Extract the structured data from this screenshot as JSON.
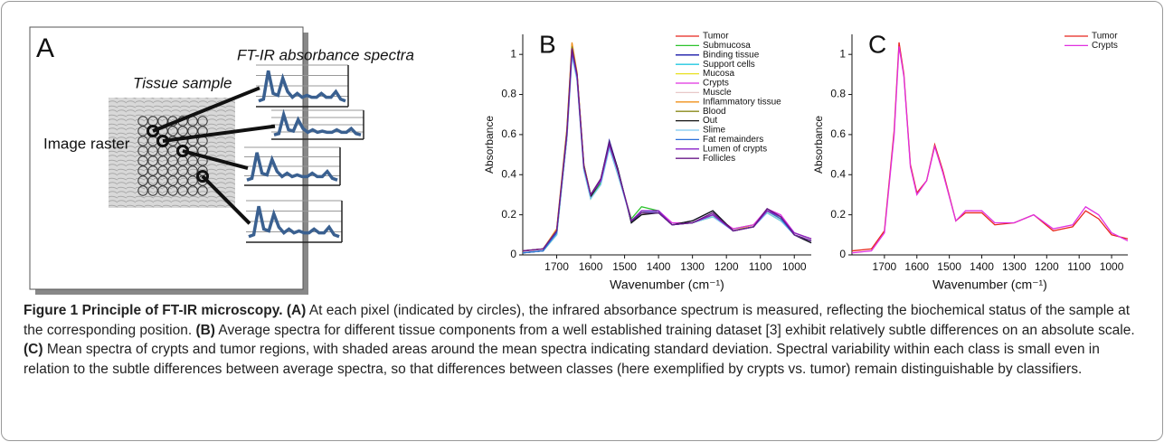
{
  "panel_a": {
    "label": "A",
    "spectra_title": "FT-IR absorbance spectra",
    "tissue_label": "Tissue sample",
    "raster_label": "Image raster"
  },
  "chart_data": [
    {
      "type": "line",
      "panel_label": "B",
      "xlabel": "Wavenumber (cm⁻¹)",
      "ylabel": "Absorbance",
      "xlim": [
        1800,
        950
      ],
      "xticks": [
        1700,
        1600,
        1500,
        1400,
        1300,
        1200,
        1100,
        1000
      ],
      "ylim": [
        0,
        1.1
      ],
      "yticks": [
        0,
        0.2,
        0.4,
        0.6,
        0.8,
        1
      ],
      "legend": "upper right",
      "x": [
        1800,
        1740,
        1700,
        1670,
        1655,
        1640,
        1620,
        1600,
        1570,
        1545,
        1520,
        1480,
        1450,
        1400,
        1360,
        1300,
        1240,
        1180,
        1120,
        1080,
        1040,
        1000,
        950
      ],
      "series": [
        {
          "name": "Tumor",
          "color": "#e8251c",
          "values": [
            0.02,
            0.03,
            0.12,
            0.62,
            1.05,
            0.9,
            0.45,
            0.3,
            0.37,
            0.55,
            0.42,
            0.17,
            0.21,
            0.21,
            0.15,
            0.16,
            0.2,
            0.12,
            0.14,
            0.22,
            0.18,
            0.1,
            0.07
          ]
        },
        {
          "name": "Submucosa",
          "color": "#2dc32d",
          "values": [
            0.01,
            0.02,
            0.1,
            0.58,
            1.0,
            0.88,
            0.43,
            0.28,
            0.36,
            0.54,
            0.4,
            0.18,
            0.24,
            0.22,
            0.15,
            0.16,
            0.19,
            0.13,
            0.15,
            0.21,
            0.17,
            0.11,
            0.08
          ]
        },
        {
          "name": "Binding tissue",
          "color": "#1a1aa8",
          "values": [
            0.01,
            0.02,
            0.11,
            0.6,
            1.02,
            0.89,
            0.44,
            0.3,
            0.38,
            0.57,
            0.43,
            0.16,
            0.21,
            0.22,
            0.15,
            0.17,
            0.22,
            0.12,
            0.14,
            0.23,
            0.19,
            0.1,
            0.06
          ]
        },
        {
          "name": "Support cells",
          "color": "#22c8e0",
          "values": [
            0.02,
            0.03,
            0.11,
            0.59,
            1.01,
            0.88,
            0.43,
            0.29,
            0.37,
            0.55,
            0.41,
            0.17,
            0.22,
            0.21,
            0.15,
            0.16,
            0.2,
            0.12,
            0.14,
            0.22,
            0.18,
            0.1,
            0.07
          ]
        },
        {
          "name": "Mucosa",
          "color": "#e8e020",
          "values": [
            0.02,
            0.03,
            0.12,
            0.61,
            1.03,
            0.9,
            0.44,
            0.3,
            0.37,
            0.55,
            0.42,
            0.17,
            0.22,
            0.21,
            0.15,
            0.16,
            0.2,
            0.12,
            0.15,
            0.22,
            0.18,
            0.11,
            0.08
          ]
        },
        {
          "name": "Crypts",
          "color": "#e030e0",
          "values": [
            0.02,
            0.03,
            0.12,
            0.6,
            1.03,
            0.9,
            0.44,
            0.3,
            0.37,
            0.54,
            0.41,
            0.17,
            0.22,
            0.22,
            0.16,
            0.16,
            0.2,
            0.13,
            0.15,
            0.23,
            0.2,
            0.11,
            0.08
          ]
        },
        {
          "name": "Muscle",
          "color": "#e8c8c8",
          "values": [
            0.02,
            0.03,
            0.11,
            0.59,
            1.01,
            0.88,
            0.43,
            0.29,
            0.37,
            0.55,
            0.41,
            0.17,
            0.22,
            0.21,
            0.15,
            0.16,
            0.2,
            0.12,
            0.14,
            0.22,
            0.18,
            0.1,
            0.07
          ]
        },
        {
          "name": "Inflammatory tissue",
          "color": "#f0901a",
          "values": [
            0.02,
            0.03,
            0.13,
            0.63,
            1.06,
            0.91,
            0.45,
            0.3,
            0.37,
            0.55,
            0.42,
            0.17,
            0.21,
            0.21,
            0.15,
            0.16,
            0.2,
            0.12,
            0.14,
            0.22,
            0.18,
            0.1,
            0.07
          ]
        },
        {
          "name": "Blood",
          "color": "#8a8a1a",
          "values": [
            0.02,
            0.03,
            0.12,
            0.62,
            1.04,
            0.9,
            0.45,
            0.3,
            0.38,
            0.56,
            0.42,
            0.17,
            0.21,
            0.21,
            0.15,
            0.16,
            0.2,
            0.12,
            0.14,
            0.22,
            0.18,
            0.1,
            0.07
          ]
        },
        {
          "name": "Out",
          "color": "#111111",
          "values": [
            0.01,
            0.02,
            0.11,
            0.6,
            1.02,
            0.88,
            0.43,
            0.29,
            0.37,
            0.56,
            0.43,
            0.16,
            0.2,
            0.21,
            0.15,
            0.17,
            0.22,
            0.12,
            0.14,
            0.23,
            0.19,
            0.1,
            0.06
          ]
        },
        {
          "name": "Slime",
          "color": "#7cc8f0",
          "values": [
            0.01,
            0.02,
            0.1,
            0.58,
            0.99,
            0.87,
            0.42,
            0.28,
            0.35,
            0.53,
            0.4,
            0.17,
            0.22,
            0.21,
            0.15,
            0.16,
            0.19,
            0.12,
            0.14,
            0.21,
            0.17,
            0.1,
            0.07
          ]
        },
        {
          "name": "Fat remainders",
          "color": "#2a70d8",
          "values": [
            0.01,
            0.02,
            0.11,
            0.6,
            1.01,
            0.89,
            0.44,
            0.3,
            0.37,
            0.55,
            0.42,
            0.17,
            0.21,
            0.21,
            0.15,
            0.16,
            0.2,
            0.12,
            0.14,
            0.22,
            0.18,
            0.1,
            0.07
          ]
        },
        {
          "name": "Lumen of crypts",
          "color": "#8a20c8",
          "values": [
            0.02,
            0.03,
            0.12,
            0.6,
            1.02,
            0.89,
            0.44,
            0.3,
            0.37,
            0.55,
            0.42,
            0.17,
            0.22,
            0.22,
            0.15,
            0.16,
            0.2,
            0.12,
            0.14,
            0.22,
            0.19,
            0.11,
            0.08
          ]
        },
        {
          "name": "Follicles",
          "color": "#6a1a8a",
          "values": [
            0.02,
            0.03,
            0.12,
            0.61,
            1.03,
            0.9,
            0.44,
            0.3,
            0.38,
            0.56,
            0.42,
            0.17,
            0.21,
            0.21,
            0.15,
            0.16,
            0.21,
            0.12,
            0.14,
            0.23,
            0.19,
            0.1,
            0.07
          ]
        }
      ]
    },
    {
      "type": "line",
      "panel_label": "C",
      "xlabel": "Wavenumber (cm⁻¹)",
      "ylabel": "Absorbance",
      "xlim": [
        1800,
        950
      ],
      "xticks": [
        1700,
        1600,
        1500,
        1400,
        1300,
        1200,
        1100,
        1000
      ],
      "ylim": [
        0,
        1.1
      ],
      "yticks": [
        0,
        0.2,
        0.4,
        0.6,
        0.8,
        1
      ],
      "legend": "upper right",
      "x": [
        1800,
        1740,
        1700,
        1670,
        1655,
        1640,
        1620,
        1600,
        1570,
        1545,
        1520,
        1480,
        1450,
        1400,
        1360,
        1300,
        1240,
        1180,
        1120,
        1080,
        1040,
        1000,
        950
      ],
      "series": [
        {
          "name": "Tumor",
          "color": "#e8251c",
          "values": [
            0.02,
            0.03,
            0.12,
            0.62,
            1.06,
            0.9,
            0.45,
            0.31,
            0.37,
            0.55,
            0.42,
            0.17,
            0.21,
            0.21,
            0.15,
            0.16,
            0.2,
            0.12,
            0.14,
            0.22,
            0.18,
            0.1,
            0.08
          ]
        },
        {
          "name": "Crypts",
          "color": "#e030e0",
          "values": [
            0.01,
            0.02,
            0.11,
            0.6,
            1.04,
            0.89,
            0.44,
            0.3,
            0.37,
            0.54,
            0.41,
            0.17,
            0.22,
            0.22,
            0.16,
            0.16,
            0.2,
            0.13,
            0.15,
            0.24,
            0.2,
            0.11,
            0.07
          ]
        }
      ]
    }
  ],
  "caption": {
    "title": "Figure 1 Principle of FT-IR microscopy.",
    "parts": [
      {
        "marker": "(A)",
        "text": "At each pixel (indicated by circles), the infrared absorbance spectrum is measured, reflecting the biochemical status of the sample at the corresponding position."
      },
      {
        "marker": "(B)",
        "text": "Average spectra for different tissue components from a well established training dataset [3] exhibit relatively subtle differences on an absolute scale."
      },
      {
        "marker": "(C)",
        "text": "Mean spectra of crypts and tumor regions, with shaded areas around the mean spectra indicating standard deviation. Spectral variability within each class is small even in relation to the subtle differences between average spectra, so that differences between classes (here exemplified by crypts vs. tumor) remain distinguishable by classifiers."
      }
    ]
  }
}
